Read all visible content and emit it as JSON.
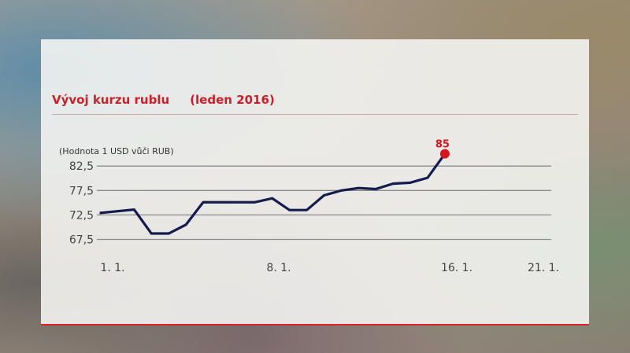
{
  "title": "Vývoj kurzu rublu",
  "subtitle": "(leden 2016)",
  "chart_data": {
    "type": "line",
    "title": "Vývoj kurzu rublu",
    "subtitle": "(leden 2016)",
    "ylabel": "(Hodnota 1 USD vůči RUB)",
    "xlabel": "",
    "ylim": [
      67.5,
      85
    ],
    "yticks": [
      82.5,
      77.5,
      72.5,
      67.5
    ],
    "ytick_labels": [
      "82,5",
      "77,5",
      "72,5",
      "67,5"
    ],
    "xtick_labels": [
      {
        "day": 1,
        "label": "1. 1."
      },
      {
        "day": 8,
        "label": "8. 1."
      },
      {
        "day": 16,
        "label": "16. 1."
      },
      {
        "day": 21,
        "label": "21. 1."
      }
    ],
    "grid": true,
    "x": [
      1,
      3,
      4,
      5,
      6,
      7,
      10,
      11,
      12,
      13,
      14,
      15,
      16,
      17,
      18,
      19,
      20,
      21
    ],
    "values": [
      72.9,
      73.6,
      68.7,
      68.7,
      70.5,
      75.1,
      75.1,
      75.9,
      73.5,
      73.5,
      76.5,
      77.5,
      78.0,
      77.8,
      78.9,
      79.1,
      80.1,
      85
    ],
    "end_label": "85",
    "line_color": "#141b4d",
    "highlight_color": "#d8141e"
  }
}
